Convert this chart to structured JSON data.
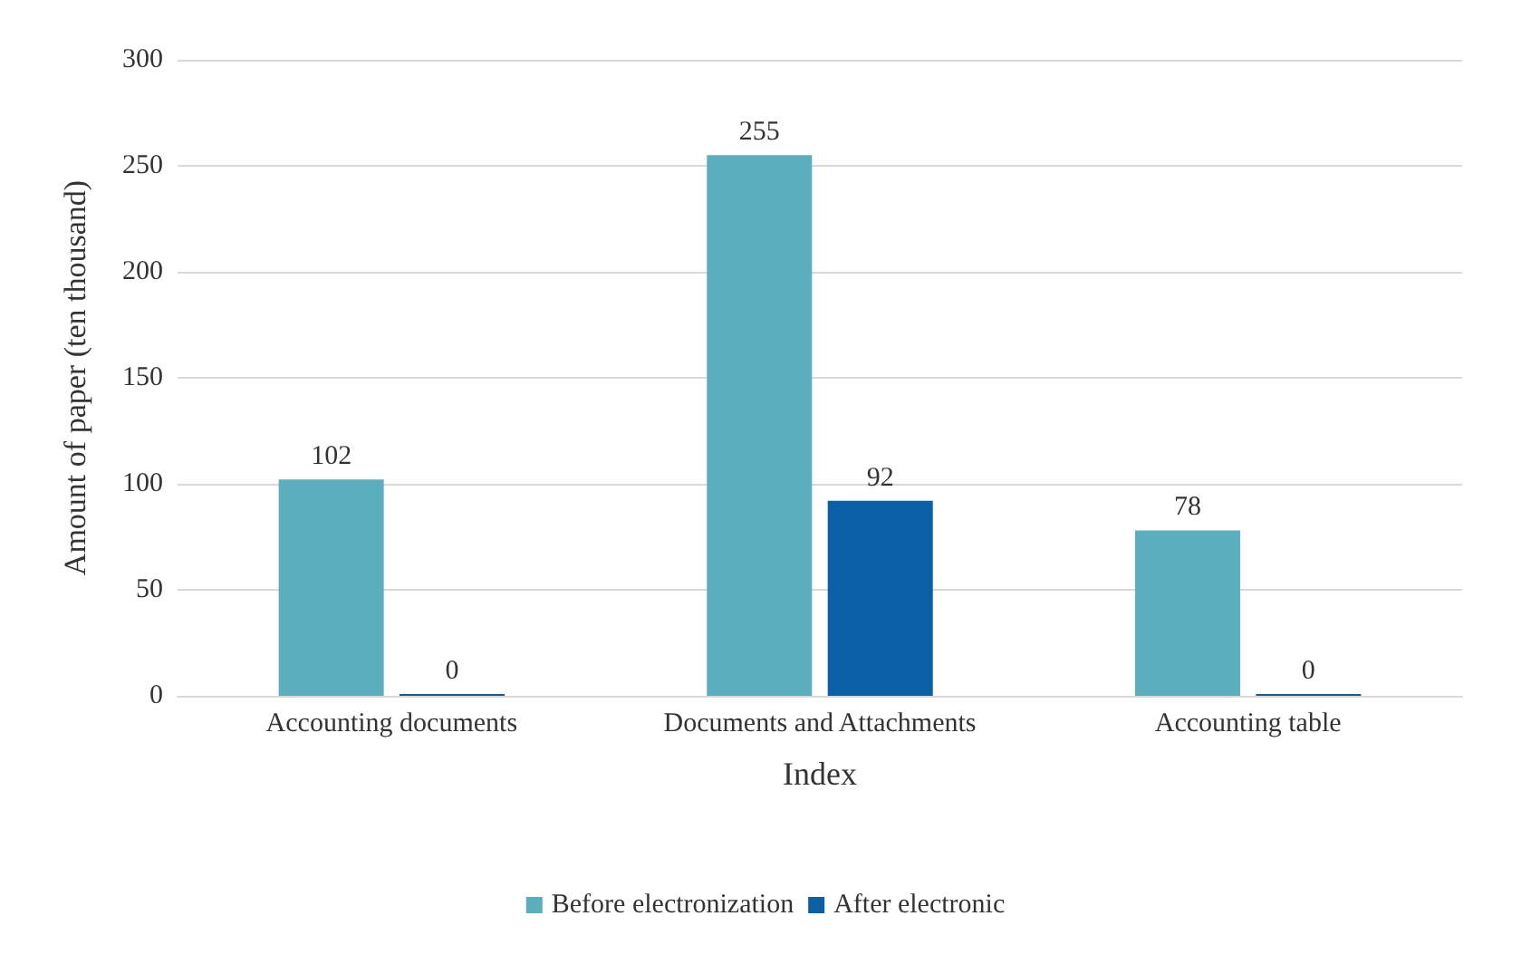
{
  "chart_data": {
    "type": "bar",
    "xlabel": "Index",
    "ylabel": "Amount of paper (ten thousand)",
    "categories": [
      "Accounting documents",
      "Documents and Attachments",
      "Accounting table"
    ],
    "series": [
      {
        "name": "Before electronization",
        "color": "#5aaebd",
        "values": [
          102,
          255,
          78
        ]
      },
      {
        "name": "After electronic",
        "color": "#0b5fa5",
        "values": [
          0,
          92,
          0
        ]
      }
    ],
    "ylim": [
      0,
      300
    ],
    "yticks": [
      0,
      50,
      100,
      150,
      200,
      250,
      300
    ],
    "grid": "y",
    "legend": "bottom",
    "data_labels": true
  }
}
